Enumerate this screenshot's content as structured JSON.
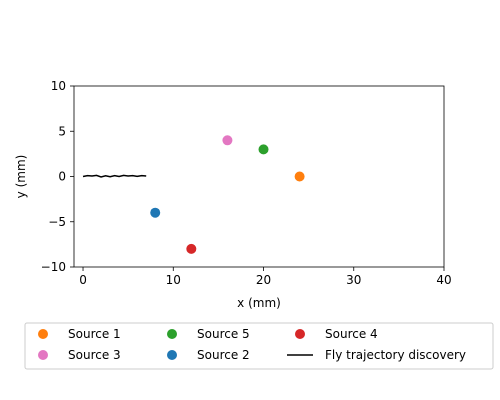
{
  "chart_data": {
    "type": "scatter",
    "xlabel": "x (mm)",
    "ylabel": "y (mm)",
    "xlim": [
      -1,
      40
    ],
    "ylim": [
      -10,
      10
    ],
    "xticks": [
      0,
      10,
      20,
      30,
      40
    ],
    "yticks": [
      -10,
      -5,
      0,
      5,
      10
    ],
    "xtick_labels": [
      "0",
      "10",
      "20",
      "30",
      "40"
    ],
    "ytick_labels": [
      "−10",
      "−5",
      "0",
      "5",
      "10"
    ],
    "grid": false,
    "legend_position": "bottom",
    "series": [
      {
        "name": "Source 1",
        "type": "scatter",
        "color": "#ff7f0e",
        "points": [
          [
            24,
            0
          ]
        ]
      },
      {
        "name": "Source 2",
        "type": "scatter",
        "color": "#1f77b4",
        "points": [
          [
            8,
            -4
          ]
        ]
      },
      {
        "name": "Source 3",
        "type": "scatter",
        "color": "#e377c2",
        "points": [
          [
            16,
            4
          ]
        ]
      },
      {
        "name": "Source 4",
        "type": "scatter",
        "color": "#d62728",
        "points": [
          [
            12,
            -8
          ]
        ]
      },
      {
        "name": "Source 5",
        "type": "scatter",
        "color": "#2ca02c",
        "points": [
          [
            20,
            3
          ]
        ]
      },
      {
        "name": "Fly trajectory discovery",
        "type": "line",
        "color": "#000000",
        "points": [
          [
            0,
            0
          ],
          [
            0.5,
            0.1
          ],
          [
            1,
            0.05
          ],
          [
            1.5,
            0.12
          ],
          [
            2,
            -0.05
          ],
          [
            2.5,
            0.08
          ],
          [
            3,
            -0.02
          ],
          [
            3.5,
            0.1
          ],
          [
            4,
            0.0
          ],
          [
            4.5,
            0.12
          ],
          [
            5,
            0.05
          ],
          [
            5.5,
            0.1
          ],
          [
            6,
            0.02
          ],
          [
            6.5,
            0.1
          ],
          [
            7,
            0.05
          ]
        ]
      }
    ],
    "legend_order": [
      0,
      2,
      4,
      1,
      3,
      5
    ]
  }
}
